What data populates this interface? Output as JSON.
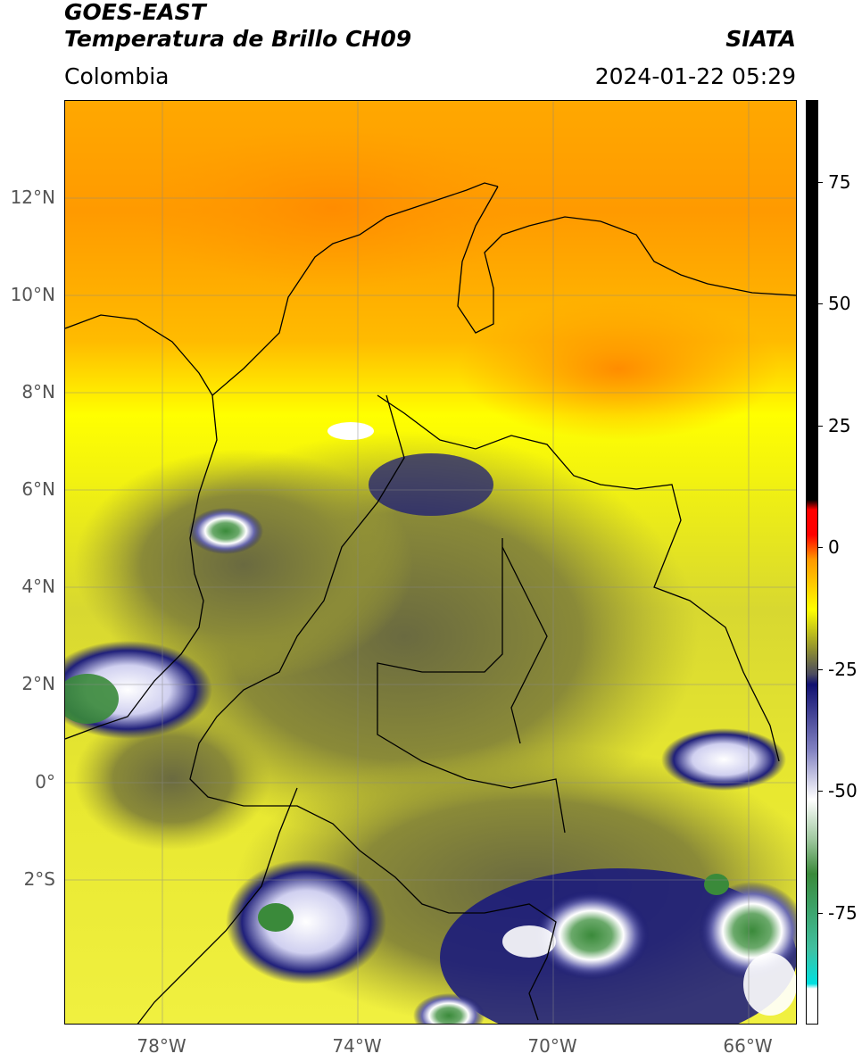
{
  "header": {
    "title_line1": "GOES-EAST",
    "title_line2": "Temperatura de Brillo CH09",
    "brand": "SIATA",
    "region": "Colombia",
    "timestamp": "2024-01-22 05:29"
  },
  "map": {
    "lat_labels": [
      {
        "text": "12°N",
        "lat": 12
      },
      {
        "text": "10°N",
        "lat": 10
      },
      {
        "text": "8°N",
        "lat": 8
      },
      {
        "text": "6°N",
        "lat": 6
      },
      {
        "text": "4°N",
        "lat": 4
      },
      {
        "text": "2°N",
        "lat": 2
      },
      {
        "text": "0°",
        "lat": 0
      },
      {
        "text": "2°S",
        "lat": -2
      }
    ],
    "lon_labels": [
      {
        "text": "78°W",
        "lon": -78
      },
      {
        "text": "74°W",
        "lon": -74
      },
      {
        "text": "70°W",
        "lon": -70
      },
      {
        "text": "66°W",
        "lon": -66
      }
    ],
    "extent": {
      "lon_min": -80,
      "lon_max": -65,
      "lat_min": -5,
      "lat_max": 14
    }
  },
  "colorbar": {
    "range": [
      -95,
      90
    ],
    "ticks": [
      {
        "text": "75",
        "value": 75
      },
      {
        "text": "50",
        "value": 50
      },
      {
        "text": "25",
        "value": 25
      },
      {
        "text": "0",
        "value": 0
      },
      {
        "text": "-25",
        "value": -25
      },
      {
        "text": "-50",
        "value": -50
      },
      {
        "text": "-75",
        "value": -75
      }
    ],
    "colors": {
      "black": "#000000",
      "red": "#ff0000",
      "orange": "#ff9900",
      "yellow": "#ffff00",
      "olive": "#8f8f30",
      "navy": "#101070",
      "white": "#ffffff",
      "green": "#3a8a3a",
      "cyan": "#00e0e0"
    }
  }
}
